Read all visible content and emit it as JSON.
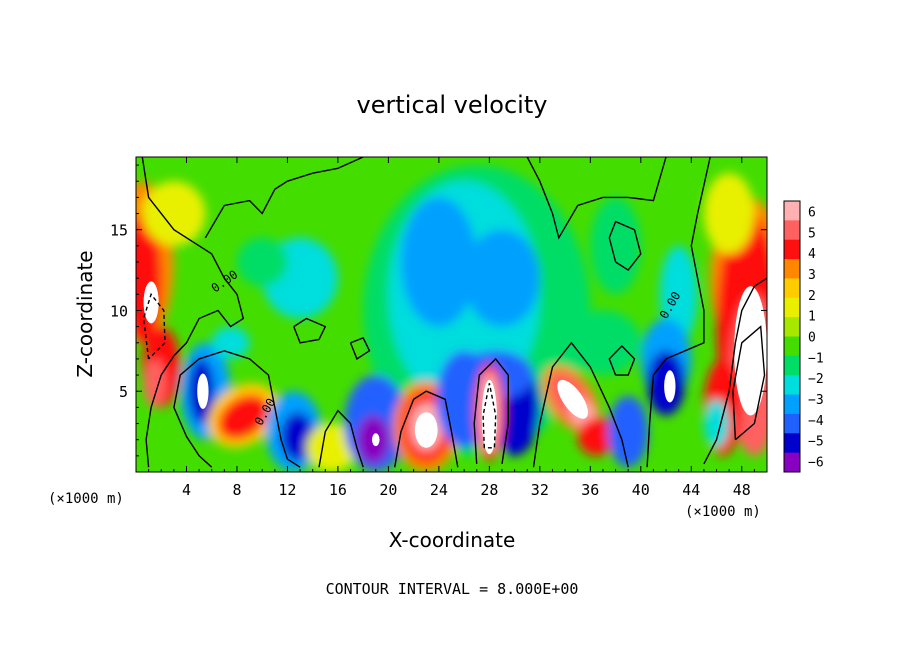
{
  "chart_data": {
    "type": "heatmap",
    "title": "vertical velocity",
    "xlabel": "X-coordinate",
    "ylabel": "Z-coordinate",
    "xunit_left": "(×1000 m)",
    "xunit_right": "(×1000 m)",
    "footer": "CONTOUR INTERVAL = 8.000E+00",
    "xlim": [
      0,
      50
    ],
    "ylim": [
      0,
      19.5
    ],
    "xticks": [
      4,
      8,
      12,
      16,
      20,
      24,
      28,
      32,
      36,
      40,
      44,
      48
    ],
    "yticks": [
      5,
      10,
      15
    ],
    "contour_labels": [
      "0.00",
      "0.00",
      "0.00"
    ],
    "colorbar": {
      "ticks": [
        6,
        5,
        4,
        3,
        2,
        1,
        0,
        -1,
        -2,
        -3,
        -4,
        -5,
        -6
      ],
      "colors": [
        "#ffb0b0",
        "#ff6060",
        "#ff1010",
        "#ff8800",
        "#ffcc00",
        "#e8f000",
        "#a8e800",
        "#44dd00",
        "#00dd66",
        "#00dddd",
        "#00a0ff",
        "#2060ff",
        "#0000cc",
        "#8800c0"
      ]
    }
  }
}
